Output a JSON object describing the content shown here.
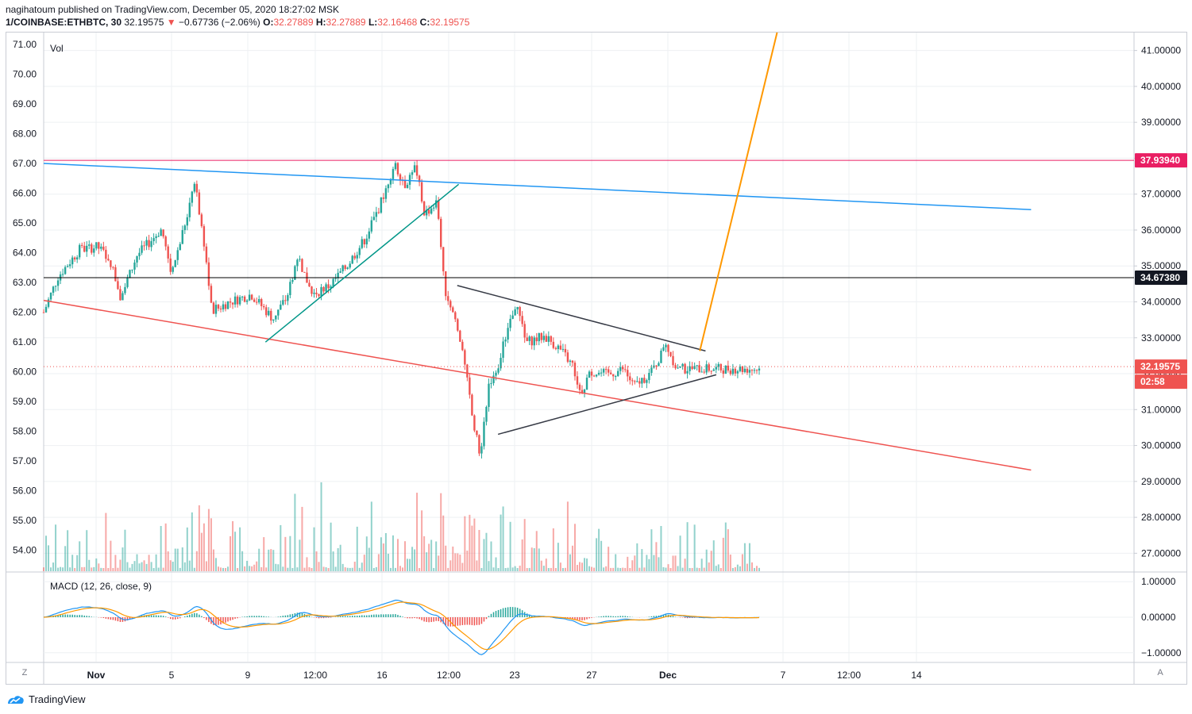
{
  "header": {
    "publisher_line": "nagihatoum published on TradingView.com, December 05, 2020 18:27:02 MSK",
    "symbol": "1/COINBASE:ETHBTC, 30",
    "last": "32.19575",
    "arrow": "▼",
    "change": "−0.67736 (−2.06%)",
    "o_label": "O:",
    "o_value": "32.27889",
    "h_label": "H:",
    "h_value": "32.27889",
    "l_label": "L:",
    "l_value": "32.16468",
    "c_label": "C:",
    "c_value": "32.19575"
  },
  "footer": {
    "brand": "TradingView",
    "logo_icon": "tradingview-logo-icon"
  },
  "buttons": {
    "zoom": "Z",
    "auto": "A"
  },
  "colors": {
    "up": "#26a69a",
    "down": "#ef5350",
    "teal_line": "#009688",
    "blue_line": "#2196f3",
    "red_line": "#ef5350",
    "orange_line": "#ff9800",
    "black_line": "#000000",
    "triangle": "#363a45",
    "magenta": "#e91e63"
  },
  "chart_data": {
    "type": "candlestick",
    "symbol": "1/COINBASE:ETHBTC",
    "interval": "30",
    "left_axis": {
      "ticks": [
        "71.00",
        "70.00",
        "69.00",
        "68.00",
        "67.00",
        "66.00",
        "65.00",
        "64.00",
        "63.00",
        "62.00",
        "61.00",
        "60.00",
        "59.00",
        "58.00",
        "57.00",
        "56.00",
        "55.00",
        "54.00"
      ],
      "range": [
        53.3,
        71.4
      ]
    },
    "volume_label": "Vol",
    "right_axis": {
      "ticks": [
        "41.00000",
        "40.00000",
        "39.00000",
        "38.00000",
        "37.00000",
        "36.00000",
        "35.00000",
        "34.00000",
        "33.00000",
        "32.00000",
        "31.00000",
        "30.00000",
        "29.00000",
        "28.00000",
        "27.00000"
      ],
      "range": [
        26.5,
        41.5
      ]
    },
    "price_labels": [
      {
        "text": "37.93940",
        "value": 37.9394,
        "color": "#e91e63"
      },
      {
        "text": "34.67380",
        "value": 34.6738,
        "color": "#131722"
      },
      {
        "text": "32.19575",
        "value": 32.19575,
        "color": "#ef5350"
      },
      {
        "text": "02:58",
        "color": "#ef5350"
      }
    ],
    "x_axis_ticks": [
      "Nov",
      "5",
      "9",
      "12:00",
      "16",
      "12:00",
      "23",
      "27",
      "Dec",
      "7",
      "12:00",
      "14"
    ],
    "anchors": [
      {
        "t": 0,
        "v": 62.0
      },
      {
        "t": 0.02,
        "v": 63.2
      },
      {
        "t": 0.05,
        "v": 64.1
      },
      {
        "t": 0.075,
        "v": 64.2
      },
      {
        "t": 0.092,
        "v": 63.8
      },
      {
        "t": 0.108,
        "v": 62.5
      },
      {
        "t": 0.13,
        "v": 63.9
      },
      {
        "t": 0.165,
        "v": 64.8
      },
      {
        "t": 0.178,
        "v": 63.3
      },
      {
        "t": 0.2,
        "v": 65.2
      },
      {
        "t": 0.21,
        "v": 66.5
      },
      {
        "t": 0.225,
        "v": 64.2
      },
      {
        "t": 0.235,
        "v": 62.0
      },
      {
        "t": 0.255,
        "v": 62.3
      },
      {
        "t": 0.29,
        "v": 62.6
      },
      {
        "t": 0.32,
        "v": 61.8
      },
      {
        "t": 0.34,
        "v": 62.5
      },
      {
        "t": 0.355,
        "v": 63.9
      },
      {
        "t": 0.375,
        "v": 62.6
      },
      {
        "t": 0.4,
        "v": 62.9
      },
      {
        "t": 0.425,
        "v": 63.6
      },
      {
        "t": 0.45,
        "v": 64.5
      },
      {
        "t": 0.47,
        "v": 65.6
      },
      {
        "t": 0.49,
        "v": 67.0
      },
      {
        "t": 0.505,
        "v": 66.3
      },
      {
        "t": 0.52,
        "v": 66.9
      },
      {
        "t": 0.532,
        "v": 65.3
      },
      {
        "t": 0.55,
        "v": 65.7
      },
      {
        "t": 0.56,
        "v": 62.8
      },
      {
        "t": 0.575,
        "v": 61.8
      },
      {
        "t": 0.59,
        "v": 60.0
      },
      {
        "t": 0.6,
        "v": 58.3
      },
      {
        "t": 0.61,
        "v": 57.2
      },
      {
        "t": 0.622,
        "v": 59.6
      },
      {
        "t": 0.635,
        "v": 60.2
      },
      {
        "t": 0.65,
        "v": 61.6
      },
      {
        "t": 0.66,
        "v": 62.3
      },
      {
        "t": 0.675,
        "v": 61.0
      },
      {
        "t": 0.7,
        "v": 61.2
      },
      {
        "t": 0.72,
        "v": 60.8
      },
      {
        "t": 0.74,
        "v": 60.2
      },
      {
        "t": 0.75,
        "v": 59.3
      },
      {
        "t": 0.765,
        "v": 60.0
      },
      {
        "t": 0.79,
        "v": 59.9
      },
      {
        "t": 0.81,
        "v": 60.1
      },
      {
        "t": 0.825,
        "v": 59.5
      },
      {
        "t": 0.85,
        "v": 60.0
      },
      {
        "t": 0.87,
        "v": 60.9
      },
      {
        "t": 0.885,
        "v": 60.1
      }
    ],
    "drawings": [
      {
        "name": "blue-trendline",
        "color": "#2196f3",
        "from": {
          "t": 0,
          "v": 67.0
        },
        "to": {
          "t": 1.38,
          "v": 65.45
        }
      },
      {
        "name": "magenta-horizontal",
        "color": "#e91e63",
        "value_right": 37.9394
      },
      {
        "name": "black-horizontal",
        "color": "#000000",
        "value_right": 34.6738
      },
      {
        "name": "red-trendline",
        "color": "#ef5350",
        "from": {
          "t": 0,
          "v": 62.4
        },
        "to": {
          "t": 1.38,
          "v": 56.7
        }
      },
      {
        "name": "teal-trendline",
        "color": "#009688",
        "from": {
          "t": 0.31,
          "v": 61.0
        },
        "to": {
          "t": 0.58,
          "v": 66.3
        }
      },
      {
        "name": "triangle-upper",
        "color": "#363a45",
        "from": {
          "t": 0.578,
          "v": 62.9
        },
        "to": {
          "t": 0.925,
          "v": 60.7
        }
      },
      {
        "name": "triangle-lower",
        "color": "#363a45",
        "from": {
          "t": 0.635,
          "v": 57.9
        },
        "to": {
          "t": 0.94,
          "v": 59.9
        }
      },
      {
        "name": "orange-projection",
        "color": "#ff9800",
        "from": {
          "t": 0.917,
          "v": 60.7
        },
        "to": {
          "t": 1.025,
          "v": 71.4
        }
      }
    ],
    "macd": {
      "label": "MACD (12, 26, close, 9)",
      "ticks": [
        "1.00000",
        "0.00000",
        "−1.00000"
      ],
      "range": [
        -1.25,
        1.25
      ]
    }
  }
}
